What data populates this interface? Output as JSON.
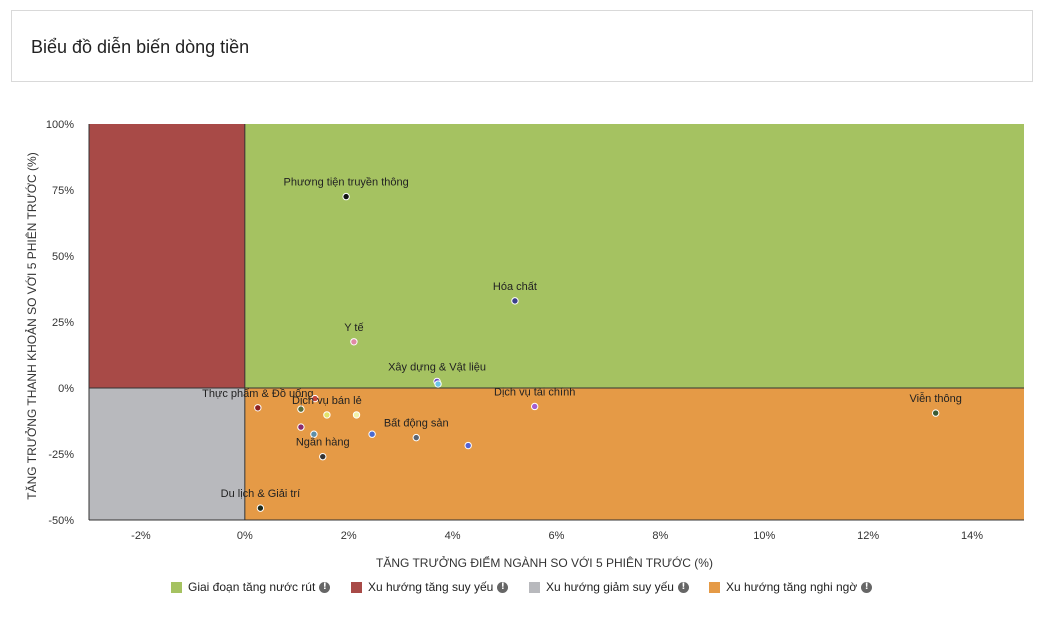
{
  "header": {
    "title": "Biểu đồ diễn biến dòng tiền"
  },
  "legend": [
    {
      "label": "Giai đoạn tăng nước rút",
      "color": "#a5c261",
      "icon": "info-icon"
    },
    {
      "label": "Xu hướng tăng suy yếu",
      "color": "#a84a47",
      "icon": "info-icon"
    },
    {
      "label": "Xu hướng giảm suy yếu",
      "color": "#b8b9bd",
      "icon": "info-icon"
    },
    {
      "label": "Xu hướng tăng nghi ngờ",
      "color": "#e59a46",
      "icon": "info-icon"
    }
  ],
  "chart_data": {
    "type": "scatter",
    "xlabel": "TĂNG TRƯỞNG ĐIỂM NGÀNH SO VỚI 5 PHIÊN TRƯỚC (%)",
    "ylabel": "TĂNG TRƯỞNG THANH KHOẢN SO VỚI 5 PHIÊN TRƯỚC (%)",
    "xlim": [
      -3,
      15
    ],
    "ylim": [
      -50,
      100
    ],
    "x_ticks": [
      -2,
      0,
      2,
      4,
      6,
      8,
      10,
      12,
      14
    ],
    "x_tick_labels": [
      "-2%",
      "0%",
      "2%",
      "4%",
      "6%",
      "8%",
      "10%",
      "12%",
      "14%"
    ],
    "y_ticks": [
      100,
      75,
      50,
      25,
      0,
      -25,
      -50
    ],
    "y_tick_labels": [
      "100%",
      "75%",
      "50%",
      "25%",
      "0%",
      "-25%",
      "-50%"
    ],
    "quadrants": {
      "top_right": "#a5c261",
      "top_left": "#a84a47",
      "bottom_left": "#b8b9bd",
      "bottom_right": "#e59a46"
    },
    "points": [
      {
        "label": "Phương tiện truyền thông",
        "x": 1.95,
        "y": 72.5,
        "color": "#111111"
      },
      {
        "label": "Hóa chất",
        "x": 5.2,
        "y": 33,
        "color": "#3b3f8c"
      },
      {
        "label": "Y tế",
        "x": 2.1,
        "y": 17.5,
        "color": "#e08aa6"
      },
      {
        "label": "Xây dựng & Vật liệu",
        "x": 3.7,
        "y": 2.5,
        "color": "#6a49c5"
      },
      {
        "label": "",
        "x": 3.72,
        "y": 1.5,
        "color": "#6cc5e8"
      },
      {
        "label": "Thực phẩm & Đồ uống",
        "x": 0.25,
        "y": -7.5,
        "color": "#8b2020"
      },
      {
        "label": "",
        "x": 1.35,
        "y": -4,
        "color": "#c4463c"
      },
      {
        "label": "",
        "x": 1.08,
        "y": -8,
        "color": "#5d6e3b"
      },
      {
        "label": "Dịch vụ tài chính",
        "x": 5.58,
        "y": -7,
        "color": "#a45ed1"
      },
      {
        "label": "Viễn thông",
        "x": 13.3,
        "y": -9.5,
        "color": "#3a5a32"
      },
      {
        "label": "Dịch vụ bán lẻ",
        "x": 1.58,
        "y": -10.2,
        "color": "#e3e36a"
      },
      {
        "label": "",
        "x": 2.15,
        "y": -10.2,
        "color": "#f2f2a8"
      },
      {
        "label": "",
        "x": 1.08,
        "y": -14.8,
        "color": "#8a2a6e"
      },
      {
        "label": "Bất động sản",
        "x": 3.3,
        "y": -18.8,
        "color": "#5a6473"
      },
      {
        "label": "",
        "x": 2.45,
        "y": -17.5,
        "color": "#4a6ad0"
      },
      {
        "label": "",
        "x": 1.33,
        "y": -17.5,
        "color": "#5e8fa8"
      },
      {
        "label": "Ngân hàng",
        "x": 1.5,
        "y": -26,
        "color": "#333333"
      },
      {
        "label": "",
        "x": 4.3,
        "y": -21.8,
        "color": "#5363d6"
      },
      {
        "label": "Du lịch & Giải trí",
        "x": 0.3,
        "y": -45.5,
        "color": "#1e2a1a"
      }
    ]
  }
}
